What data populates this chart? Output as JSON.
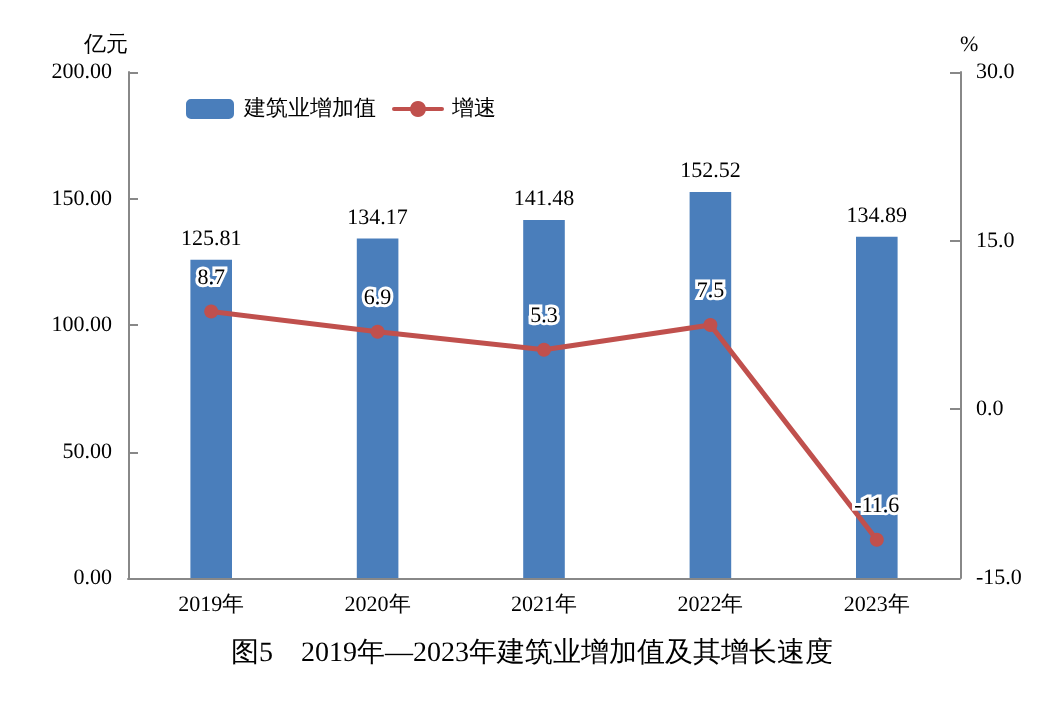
{
  "chart_data": {
    "type": "bar",
    "title": "图5　2019年—2023年建筑业增加值及其增长速度",
    "ylabel": "亿元",
    "y2label": "%",
    "categories": [
      "2019年",
      "2020年",
      "2021年",
      "2022年",
      "2023年"
    ],
    "series": [
      {
        "name": "建筑业增加值",
        "color": "#4a7ebb",
        "values": [
          125.81,
          134.17,
          141.48,
          152.52,
          134.89
        ]
      },
      {
        "name": "增速",
        "type": "line",
        "axis": "y2",
        "color": "#c0504d",
        "values": [
          8.7,
          6.9,
          5.3,
          7.5,
          -11.6
        ],
        "marker": "circle",
        "line_style": "solid"
      }
    ],
    "ylim": [
      0,
      200
    ],
    "yticks": [
      {
        "value": 0,
        "label": "0.00"
      },
      {
        "value": 50,
        "label": "50.00"
      },
      {
        "value": 100,
        "label": "100.00"
      },
      {
        "value": 150,
        "label": "150.00"
      },
      {
        "value": 200,
        "label": "200.00"
      }
    ],
    "y2lim": [
      -15,
      30
    ],
    "y2ticks": [
      {
        "value": -15,
        "label": "-15.0"
      },
      {
        "value": 0,
        "label": "0.0"
      },
      {
        "value": 15,
        "label": "15.0"
      },
      {
        "value": 30,
        "label": "30.0"
      }
    ],
    "data_labels": true,
    "grid": false,
    "legend": "top left"
  }
}
